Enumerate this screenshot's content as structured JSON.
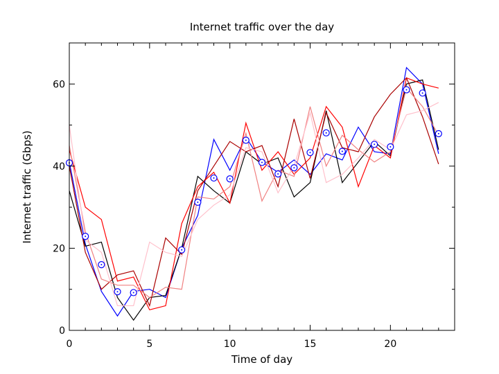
{
  "chart_data": {
    "type": "line",
    "title": "Internet traffic over the day",
    "xlabel": "Time of day",
    "ylabel": "Internet traffic (Gbps)",
    "xlim": [
      0,
      24
    ],
    "ylim": [
      0,
      70
    ],
    "xticks": [
      0,
      5,
      10,
      15,
      20
    ],
    "yticks": [
      0,
      20,
      40,
      60
    ],
    "grid": false,
    "x": [
      0,
      1,
      2,
      3,
      4,
      5,
      6,
      7,
      8,
      9,
      10,
      11,
      12,
      13,
      14,
      15,
      16,
      17,
      18,
      19,
      20,
      21,
      22,
      23
    ],
    "series": [
      {
        "style": "line",
        "color": "#0000ff",
        "values": [
          41,
          21,
          9.5,
          3.5,
          9.5,
          10,
          8,
          20,
          28,
          46.5,
          39,
          47,
          41,
          38.5,
          41.5,
          38,
          43,
          41.5,
          49.5,
          43.5,
          43,
          64,
          60,
          43
        ]
      },
      {
        "style": "line",
        "color": "#000000",
        "values": [
          34,
          20.5,
          21.5,
          8,
          2.5,
          8,
          8.5,
          20,
          37.5,
          34,
          31,
          43.5,
          40.5,
          42,
          32.5,
          36,
          53.5,
          36,
          41,
          46,
          42.5,
          60,
          61,
          44
        ]
      },
      {
        "style": "line",
        "color": "#ff0000",
        "values": [
          44,
          30,
          27,
          12,
          13,
          5,
          6,
          26,
          35,
          38.5,
          31,
          50.5,
          39,
          43.5,
          38,
          42,
          54.5,
          49.5,
          35,
          45,
          42,
          61.5,
          60,
          59
        ]
      },
      {
        "style": "line",
        "color": "#aa0000",
        "values": [
          40,
          19,
          10,
          13.5,
          14.5,
          6,
          22.5,
          18.5,
          34,
          40,
          46,
          43.5,
          45,
          35,
          51.5,
          37,
          53,
          44.5,
          43.5,
          52,
          57.5,
          61.5,
          52,
          40.5
        ]
      },
      {
        "style": "line",
        "color": "#f08080",
        "values": [
          45,
          24,
          12.5,
          11,
          11,
          8,
          10.5,
          10,
          32.5,
          32,
          35,
          48,
          31.5,
          39,
          37.5,
          54.5,
          40,
          47.5,
          44,
          41,
          43.5,
          59,
          54.5,
          47.5
        ]
      },
      {
        "style": "line",
        "color": "#ffc0cb",
        "values": [
          50,
          22,
          19,
          6,
          6,
          21.5,
          19,
          18,
          27,
          30.5,
          33,
          44.5,
          43.5,
          33.5,
          40,
          53,
          36,
          38,
          42,
          46.5,
          44,
          52.5,
          53.5,
          55.5
        ]
      },
      {
        "style": "marker",
        "color": "#0000ff",
        "values": [
          40.8,
          22.9,
          16,
          9.4,
          9.2,
          null,
          null,
          19.6,
          31.2,
          37.1,
          36.9,
          46.3,
          40.9,
          38.1,
          39.6,
          43.3,
          48.1,
          43.6,
          null,
          45.3,
          44.7,
          58.6,
          57.8,
          47.9
        ]
      }
    ]
  }
}
